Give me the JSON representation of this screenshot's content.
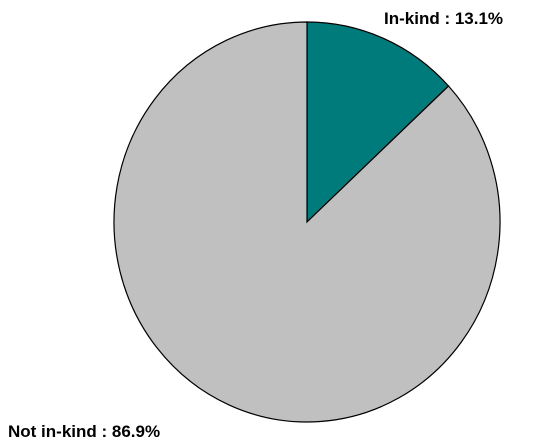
{
  "chart_data": {
    "type": "pie",
    "title": "",
    "categories": [
      "In-kind",
      "Not in-kind"
    ],
    "values": [
      13.1,
      86.9
    ],
    "labels": [
      "In-kind :  13.1%",
      "Not in-kind :  86.9%"
    ],
    "colors": [
      "#007b7b",
      "#c0c0c0"
    ],
    "start_angle_deg": 0,
    "direction": "clockwise",
    "edge_color": "#000000",
    "legend": "none"
  }
}
